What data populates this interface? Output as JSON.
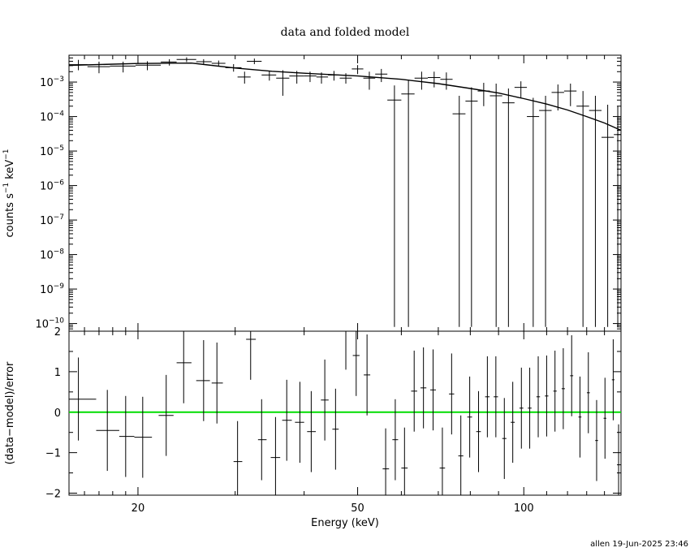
{
  "chart_data": [
    {
      "type": "scatter",
      "panel": "top",
      "title": "data and folded model",
      "ylabel_main": "counts s",
      "ylabel_exp1": "−1",
      "ylabel_mid": " keV",
      "ylabel_exp2": "−1",
      "xscale": "log",
      "yscale": "log",
      "xlim": [
        15,
        150
      ],
      "ylim": [
        6e-11,
        0.006
      ],
      "yticks": [
        {
          "v": 1e-10,
          "m": "10",
          "e": "−10"
        },
        {
          "v": 1e-09,
          "m": "10",
          "e": "−9"
        },
        {
          "v": 1e-08,
          "m": "10",
          "e": "−8"
        },
        {
          "v": 1e-07,
          "m": "10",
          "e": "−7"
        },
        {
          "v": 1e-06,
          "m": "10",
          "e": "−6"
        },
        {
          "v": 1e-05,
          "m": "10",
          "e": "−5"
        },
        {
          "v": 0.0001,
          "m": "10",
          "e": "−4"
        },
        {
          "v": 0.001,
          "m": "10",
          "e": "−3"
        }
      ],
      "data": [
        {
          "x": 15.6,
          "xlo": 15.0,
          "xhi": 16.2,
          "y": 0.0032,
          "ylo": 0.0022,
          "yhi": 0.0044
        },
        {
          "x": 17.0,
          "xlo": 16.2,
          "xhi": 17.8,
          "y": 0.0028,
          "ylo": 0.0018,
          "yhi": 0.0039
        },
        {
          "x": 18.8,
          "xlo": 17.8,
          "xhi": 19.8,
          "y": 0.0029,
          "ylo": 0.0019,
          "yhi": 0.0039
        },
        {
          "x": 20.8,
          "xlo": 19.8,
          "xhi": 22.0,
          "y": 0.0031,
          "ylo": 0.0022,
          "yhi": 0.004
        },
        {
          "x": 22.8,
          "xlo": 22.0,
          "xhi": 23.5,
          "y": 0.0038,
          "ylo": 0.003,
          "yhi": 0.0046
        },
        {
          "x": 24.5,
          "xlo": 23.5,
          "xhi": 25.5,
          "y": 0.0045,
          "ylo": 0.0038,
          "yhi": 0.0052
        },
        {
          "x": 26.3,
          "xlo": 25.5,
          "xhi": 27.2,
          "y": 0.0039,
          "ylo": 0.0032,
          "yhi": 0.0046
        },
        {
          "x": 28.0,
          "xlo": 27.2,
          "xhi": 28.8,
          "y": 0.0035,
          "ylo": 0.0028,
          "yhi": 0.0042
        },
        {
          "x": 29.8,
          "xlo": 28.8,
          "xhi": 30.8,
          "y": 0.0026,
          "ylo": 0.002,
          "yhi": 0.0033
        },
        {
          "x": 31.2,
          "xlo": 30.3,
          "xhi": 32.0,
          "y": 0.0014,
          "ylo": 0.0009,
          "yhi": 0.002
        },
        {
          "x": 32.5,
          "xlo": 31.5,
          "xhi": 33.5,
          "y": 0.004,
          "ylo": 0.0033,
          "yhi": 0.0048
        },
        {
          "x": 34.6,
          "xlo": 33.5,
          "xhi": 35.6,
          "y": 0.0016,
          "ylo": 0.0011,
          "yhi": 0.0021
        },
        {
          "x": 36.6,
          "xlo": 35.6,
          "xhi": 37.6,
          "y": 0.0013,
          "ylo": 0.0004,
          "yhi": 0.0022
        },
        {
          "x": 38.8,
          "xlo": 37.6,
          "xhi": 40.0,
          "y": 0.0015,
          "ylo": 0.0009,
          "yhi": 0.0021
        },
        {
          "x": 41.0,
          "xlo": 40.0,
          "xhi": 42.1,
          "y": 0.0015,
          "ylo": 0.001,
          "yhi": 0.002
        },
        {
          "x": 43.0,
          "xlo": 42.1,
          "xhi": 44.2,
          "y": 0.0014,
          "ylo": 0.0009,
          "yhi": 0.0019
        },
        {
          "x": 45.3,
          "xlo": 44.2,
          "xhi": 46.4,
          "y": 0.0016,
          "ylo": 0.0011,
          "yhi": 0.0021
        },
        {
          "x": 47.6,
          "xlo": 46.4,
          "xhi": 48.8,
          "y": 0.0013,
          "ylo": 0.0009,
          "yhi": 0.0018
        },
        {
          "x": 50.0,
          "xlo": 48.8,
          "xhi": 51.2,
          "y": 0.0024,
          "ylo": 0.0017,
          "yhi": 0.0031
        },
        {
          "x": 52.5,
          "xlo": 51.2,
          "xhi": 53.8,
          "y": 0.0013,
          "ylo": 0.0006,
          "yhi": 0.002
        },
        {
          "x": 55.2,
          "xlo": 53.8,
          "xhi": 56.6,
          "y": 0.0017,
          "ylo": 0.001,
          "yhi": 0.0024
        },
        {
          "x": 58.3,
          "xlo": 56.6,
          "xhi": 60.0,
          "y": 0.0003,
          "ylo": 8e-11,
          "yhi": 0.0008
        },
        {
          "x": 61.8,
          "xlo": 60.0,
          "xhi": 63.4,
          "y": 0.00045,
          "ylo": 8e-11,
          "yhi": 0.0011
        },
        {
          "x": 65.3,
          "xlo": 63.4,
          "xhi": 67.0,
          "y": 0.0013,
          "ylo": 0.0006,
          "yhi": 0.002
        },
        {
          "x": 68.8,
          "xlo": 67.0,
          "xhi": 70.6,
          "y": 0.00135,
          "ylo": 0.0007,
          "yhi": 0.002
        },
        {
          "x": 72.4,
          "xlo": 70.6,
          "xhi": 74.3,
          "y": 0.0012,
          "ylo": 0.0006,
          "yhi": 0.0019
        },
        {
          "x": 76.4,
          "xlo": 74.3,
          "xhi": 78.4,
          "y": 0.00012,
          "ylo": 8e-11,
          "yhi": 0.0004
        },
        {
          "x": 80.4,
          "xlo": 78.4,
          "xhi": 82.5,
          "y": 0.00028,
          "ylo": 8e-11,
          "yhi": 0.0007
        },
        {
          "x": 84.6,
          "xlo": 82.5,
          "xhi": 86.8,
          "y": 0.00055,
          "ylo": 0.0002,
          "yhi": 0.00095
        },
        {
          "x": 89.1,
          "xlo": 86.8,
          "xhi": 91.4,
          "y": 0.0004,
          "ylo": 8e-11,
          "yhi": 0.0009
        },
        {
          "x": 93.8,
          "xlo": 91.4,
          "xhi": 96.2,
          "y": 0.00025,
          "ylo": 8e-11,
          "yhi": 0.00065
        },
        {
          "x": 98.8,
          "xlo": 96.2,
          "xhi": 101.3,
          "y": 0.0007,
          "ylo": 0.00035,
          "yhi": 0.00105
        },
        {
          "x": 104.0,
          "xlo": 101.3,
          "xhi": 106.6,
          "y": 0.0001,
          "ylo": 8e-11,
          "yhi": 0.00035
        },
        {
          "x": 109.5,
          "xlo": 106.6,
          "xhi": 112.3,
          "y": 0.00015,
          "ylo": 8e-11,
          "yhi": 0.0004
        },
        {
          "x": 115.3,
          "xlo": 112.3,
          "xhi": 118.3,
          "y": 0.0005,
          "ylo": 0.00015,
          "yhi": 0.00085
        },
        {
          "x": 121.5,
          "xlo": 118.3,
          "xhi": 124.6,
          "y": 0.00055,
          "ylo": 0.0002,
          "yhi": 0.0009
        },
        {
          "x": 128.0,
          "xlo": 124.6,
          "xhi": 131.3,
          "y": 0.0002,
          "ylo": 8e-11,
          "yhi": 0.00055
        },
        {
          "x": 134.8,
          "xlo": 131.3,
          "xhi": 138.3,
          "y": 0.00015,
          "ylo": 8e-11,
          "yhi": 0.0004
        },
        {
          "x": 141.9,
          "xlo": 138.3,
          "xhi": 145.6,
          "y": 2.5e-05,
          "ylo": 8e-11,
          "yhi": 0.00022
        },
        {
          "x": 148.0,
          "xlo": 145.6,
          "xhi": 150.0,
          "y": 3e-05,
          "ylo": 8e-11,
          "yhi": 0.0002
        }
      ],
      "model": [
        [
          15,
          0.00305
        ],
        [
          20,
          0.00345
        ],
        [
          25,
          0.00355
        ],
        [
          30,
          0.00255
        ],
        [
          35,
          0.00205
        ],
        [
          40,
          0.0018
        ],
        [
          50,
          0.0015
        ],
        [
          60,
          0.0012
        ],
        [
          70,
          0.0009
        ],
        [
          80,
          0.00065
        ],
        [
          90,
          0.00048
        ],
        [
          100,
          0.00033
        ],
        [
          110,
          0.00023
        ],
        [
          120,
          0.000155
        ],
        [
          130,
          0.0001
        ],
        [
          140,
          6.5e-05
        ],
        [
          150,
          4e-05
        ]
      ]
    },
    {
      "type": "scatter",
      "panel": "bottom",
      "ylabel": "(data−model)/error",
      "xlabel": "Energy (keV)",
      "xscale": "log",
      "xlim": [
        15,
        150
      ],
      "ylim": [
        -2.05,
        2.0
      ],
      "xticks": [
        {
          "v": 20,
          "label": "20"
        },
        {
          "v": 50,
          "label": "50"
        },
        {
          "v": 100,
          "label": "100"
        }
      ],
      "yticks": [
        {
          "v": 2,
          "label": "2"
        },
        {
          "v": 1,
          "label": "1"
        },
        {
          "v": 0,
          "label": "0"
        },
        {
          "v": -1,
          "label": "−1"
        },
        {
          "v": -2,
          "label": "−2"
        }
      ],
      "zero_line_color": "#00dd00",
      "data": [
        {
          "x": 15.6,
          "xlo": 15.0,
          "xhi": 16.8,
          "y": 0.32,
          "ylo": -0.7,
          "yhi": 1.35
        },
        {
          "x": 17.6,
          "xlo": 16.8,
          "xhi": 18.5,
          "y": -0.45,
          "ylo": -1.45,
          "yhi": 0.55
        },
        {
          "x": 19.0,
          "xlo": 18.5,
          "xhi": 19.7,
          "y": -0.6,
          "ylo": -1.6,
          "yhi": 0.4
        },
        {
          "x": 20.4,
          "xlo": 19.7,
          "xhi": 21.2,
          "y": -0.62,
          "ylo": -1.62,
          "yhi": 0.38
        },
        {
          "x": 22.5,
          "xlo": 21.8,
          "xhi": 23.2,
          "y": -0.08,
          "ylo": -1.08,
          "yhi": 0.92
        },
        {
          "x": 24.2,
          "xlo": 23.5,
          "xhi": 25.0,
          "y": 1.22,
          "ylo": 0.22,
          "yhi": 2.0
        },
        {
          "x": 26.3,
          "xlo": 25.5,
          "xhi": 27.0,
          "y": 0.78,
          "ylo": -0.22,
          "yhi": 1.78
        },
        {
          "x": 27.8,
          "xlo": 27.2,
          "xhi": 28.5,
          "y": 0.72,
          "ylo": -0.28,
          "yhi": 1.72
        },
        {
          "x": 30.3,
          "xlo": 29.8,
          "xhi": 30.9,
          "y": -1.22,
          "ylo": -2.05,
          "yhi": -0.22
        },
        {
          "x": 32.0,
          "xlo": 31.4,
          "xhi": 32.7,
          "y": 1.8,
          "ylo": 0.8,
          "yhi": 2.0
        },
        {
          "x": 33.5,
          "xlo": 33.0,
          "xhi": 34.2,
          "y": -0.68,
          "ylo": -1.68,
          "yhi": 0.32
        },
        {
          "x": 35.5,
          "xlo": 34.8,
          "xhi": 36.2,
          "y": -1.12,
          "ylo": -2.05,
          "yhi": -0.12
        },
        {
          "x": 37.2,
          "xlo": 36.5,
          "xhi": 38.0,
          "y": -0.2,
          "ylo": -1.2,
          "yhi": 0.8
        },
        {
          "x": 39.3,
          "xlo": 38.5,
          "xhi": 40.0,
          "y": -0.25,
          "ylo": -1.25,
          "yhi": 0.75
        },
        {
          "x": 41.2,
          "xlo": 40.5,
          "xhi": 42.0,
          "y": -0.48,
          "ylo": -1.48,
          "yhi": 0.52
        },
        {
          "x": 43.6,
          "xlo": 42.9,
          "xhi": 44.3,
          "y": 0.3,
          "ylo": -0.7,
          "yhi": 1.3
        },
        {
          "x": 45.6,
          "xlo": 45.0,
          "xhi": 46.2,
          "y": -0.42,
          "ylo": -1.42,
          "yhi": 0.58
        },
        {
          "x": 47.6,
          "xlo": 46.9,
          "xhi": 48.3,
          "y": 2.05,
          "ylo": 1.05,
          "yhi": 2.0
        },
        {
          "x": 49.7,
          "xlo": 49.0,
          "xhi": 50.4,
          "y": 1.4,
          "ylo": 0.4,
          "yhi": 2.0
        },
        {
          "x": 52.0,
          "xlo": 51.3,
          "xhi": 52.7,
          "y": 0.92,
          "ylo": -0.08,
          "yhi": 1.92
        },
        {
          "x": 56.2,
          "xlo": 55.5,
          "xhi": 57.0,
          "y": -1.4,
          "ylo": -2.05,
          "yhi": -0.4
        },
        {
          "x": 58.5,
          "xlo": 57.8,
          "xhi": 59.2,
          "y": -0.68,
          "ylo": -1.68,
          "yhi": 0.32
        },
        {
          "x": 60.8,
          "xlo": 60.0,
          "xhi": 61.6,
          "y": -1.38,
          "ylo": -2.05,
          "yhi": -0.38
        },
        {
          "x": 63.3,
          "xlo": 62.5,
          "xhi": 64.1,
          "y": 0.52,
          "ylo": -0.48,
          "yhi": 1.52
        },
        {
          "x": 65.8,
          "xlo": 65.0,
          "xhi": 66.6,
          "y": 0.6,
          "ylo": -0.4,
          "yhi": 1.6
        },
        {
          "x": 68.5,
          "xlo": 67.7,
          "xhi": 69.3,
          "y": 0.55,
          "ylo": -0.45,
          "yhi": 1.55
        },
        {
          "x": 71.2,
          "xlo": 70.4,
          "xhi": 72.0,
          "y": -1.38,
          "ylo": -2.05,
          "yhi": -0.38
        },
        {
          "x": 74.0,
          "xlo": 73.2,
          "xhi": 74.8,
          "y": 0.45,
          "ylo": -0.55,
          "yhi": 1.45
        },
        {
          "x": 76.9,
          "xlo": 76.1,
          "xhi": 77.7,
          "y": -1.08,
          "ylo": -2.05,
          "yhi": -0.08
        },
        {
          "x": 79.8,
          "xlo": 79.0,
          "xhi": 80.6,
          "y": -0.12,
          "ylo": -1.12,
          "yhi": 0.88
        },
        {
          "x": 82.8,
          "xlo": 82.0,
          "xhi": 83.6,
          "y": -0.48,
          "ylo": -1.48,
          "yhi": 0.52
        },
        {
          "x": 85.9,
          "xlo": 85.1,
          "xhi": 86.7,
          "y": 0.38,
          "ylo": -0.62,
          "yhi": 1.38
        },
        {
          "x": 89.0,
          "xlo": 88.2,
          "xhi": 89.8,
          "y": 0.38,
          "ylo": -0.62,
          "yhi": 1.38
        },
        {
          "x": 92.2,
          "xlo": 91.4,
          "xhi": 93.0,
          "y": -0.65,
          "ylo": -1.65,
          "yhi": 0.35
        },
        {
          "x": 95.5,
          "xlo": 94.7,
          "xhi": 96.3,
          "y": -0.25,
          "ylo": -1.25,
          "yhi": 0.75
        },
        {
          "x": 99.0,
          "xlo": 98.2,
          "xhi": 99.8,
          "y": 0.1,
          "ylo": -0.9,
          "yhi": 1.1
        },
        {
          "x": 102.5,
          "xlo": 101.7,
          "xhi": 103.3,
          "y": 0.1,
          "ylo": -0.9,
          "yhi": 1.1
        },
        {
          "x": 106.2,
          "xlo": 105.4,
          "xhi": 107.0,
          "y": 0.38,
          "ylo": -0.62,
          "yhi": 1.38
        },
        {
          "x": 110.0,
          "xlo": 109.2,
          "xhi": 110.8,
          "y": 0.4,
          "ylo": -0.6,
          "yhi": 1.4
        },
        {
          "x": 113.9,
          "xlo": 113.1,
          "xhi": 114.7,
          "y": 0.52,
          "ylo": -0.48,
          "yhi": 1.52
        },
        {
          "x": 117.9,
          "xlo": 117.1,
          "xhi": 118.7,
          "y": 0.58,
          "ylo": -0.42,
          "yhi": 1.58
        },
        {
          "x": 122.1,
          "xlo": 121.3,
          "xhi": 122.9,
          "y": 0.9,
          "ylo": -0.1,
          "yhi": 1.9
        },
        {
          "x": 126.4,
          "xlo": 125.6,
          "xhi": 127.2,
          "y": -0.12,
          "ylo": -1.12,
          "yhi": 0.88
        },
        {
          "x": 130.9,
          "xlo": 130.1,
          "xhi": 131.7,
          "y": 0.48,
          "ylo": -0.52,
          "yhi": 1.48
        },
        {
          "x": 135.5,
          "xlo": 134.7,
          "xhi": 136.3,
          "y": -0.7,
          "ylo": -1.7,
          "yhi": 0.3
        },
        {
          "x": 140.3,
          "xlo": 139.5,
          "xhi": 141.1,
          "y": -0.15,
          "ylo": -1.15,
          "yhi": 0.85
        },
        {
          "x": 145.2,
          "xlo": 144.4,
          "xhi": 146.0,
          "y": 0.8,
          "ylo": -0.2,
          "yhi": 1.8
        },
        {
          "x": 148.5,
          "xlo": 147.5,
          "xhi": 150.0,
          "y": -1.3,
          "ylo": -2.05,
          "yhi": -0.3
        }
      ]
    }
  ],
  "footer": {
    "stamp": "allen 19-Jun-2025 23:46"
  },
  "colors": {
    "data": "#000000",
    "model": "#000000",
    "zero_line": "#00dd00"
  }
}
